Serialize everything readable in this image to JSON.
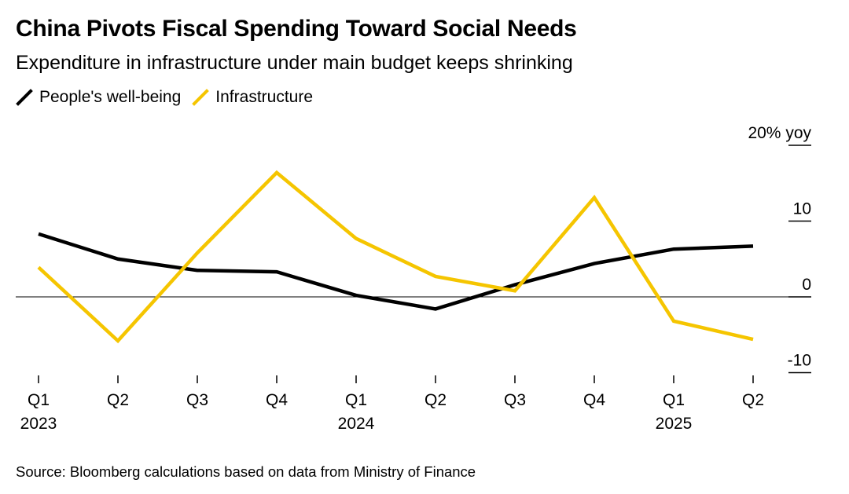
{
  "title": "China Pivots Fiscal Spending Toward Social Needs",
  "subtitle": "Expenditure in infrastructure under main budget keeps shrinking",
  "source": "Source: Bloomberg calculations based on data from Ministry of Finance",
  "colors": {
    "wellbeing": "#000000",
    "infrastructure": "#f5c500",
    "axis": "#000000"
  },
  "chart_data": {
    "type": "line",
    "x": [
      "Q1",
      "Q2",
      "Q3",
      "Q4",
      "Q1",
      "Q2",
      "Q3",
      "Q4",
      "Q1",
      "Q2"
    ],
    "year_labels": [
      "2023",
      "",
      "",
      "",
      "2024",
      "",
      "",
      "",
      "2025",
      ""
    ],
    "series": [
      {
        "name": "People's well-being",
        "values": [
          8.3,
          5.0,
          3.5,
          3.3,
          0.2,
          -1.6,
          1.6,
          4.4,
          6.3,
          6.7
        ]
      },
      {
        "name": "Infrastructure",
        "values": [
          3.9,
          -5.8,
          5.8,
          16.4,
          7.7,
          2.7,
          0.8,
          13.1,
          -3.2,
          -5.6
        ]
      }
    ],
    "y_ticks": [
      {
        "value": 20,
        "label": "20% yoy"
      },
      {
        "value": 10,
        "label": "10"
      },
      {
        "value": 0,
        "label": "0"
      },
      {
        "value": -10,
        "label": "-10"
      }
    ],
    "ylim": [
      -10,
      20
    ],
    "legend": "top-left",
    "grid": false
  }
}
